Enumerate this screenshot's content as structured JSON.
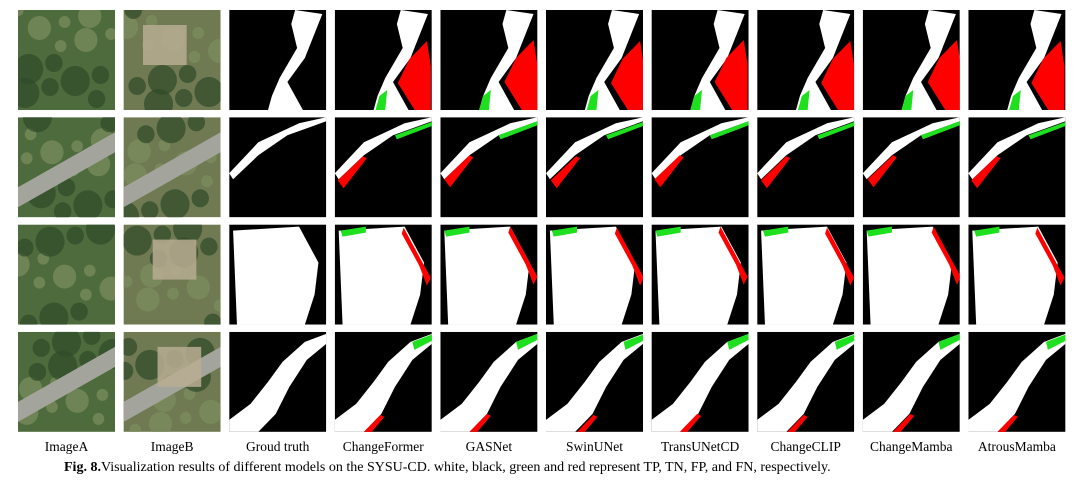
{
  "columns": [
    "ImageA",
    "ImageB",
    "Groud truth",
    "ChangeFormer",
    "GASNet",
    "SwinUNet",
    "TransUNetCD",
    "ChangeCLIP",
    "ChangeMamba",
    "AtrousMamba"
  ],
  "caption": {
    "label": "Fig. 8.",
    "text": "Visualization results of different models on the SYSU-CD. white, black, green and red represent TP, TN, FP, and FN, respectively."
  }
}
